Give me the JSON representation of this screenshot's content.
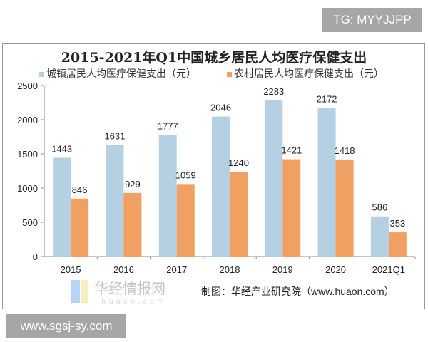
{
  "watermark_top": "TG: MYYJJPP",
  "watermark_bottom": "www.sgsj-sy.com",
  "source": "制图：华经产业研究院（www.huaon.com）",
  "logo_text": "华经情报网 huaon.com",
  "chart_data": {
    "type": "bar",
    "title": "2015-2021年Q1中国城乡居民人均医疗保健支出",
    "categories": [
      "2015",
      "2016",
      "2017",
      "2018",
      "2019",
      "2020",
      "2021Q1"
    ],
    "series": [
      {
        "name": "城镇居民人均医疗保健支出（元）",
        "color": "#b4d0e2",
        "values": [
          1443,
          1631,
          1777,
          2046,
          2283,
          2172,
          586
        ]
      },
      {
        "name": "农村居民人均医疗保健支出（元）",
        "color": "#f0a060",
        "values": [
          846,
          929,
          1059,
          1240,
          1421,
          1418,
          353
        ]
      }
    ],
    "ylim": [
      0,
      2500
    ],
    "yticks": [
      "0",
      "500",
      "1000",
      "1500",
      "2000",
      "2500"
    ],
    "grid": false,
    "legend": "top"
  }
}
